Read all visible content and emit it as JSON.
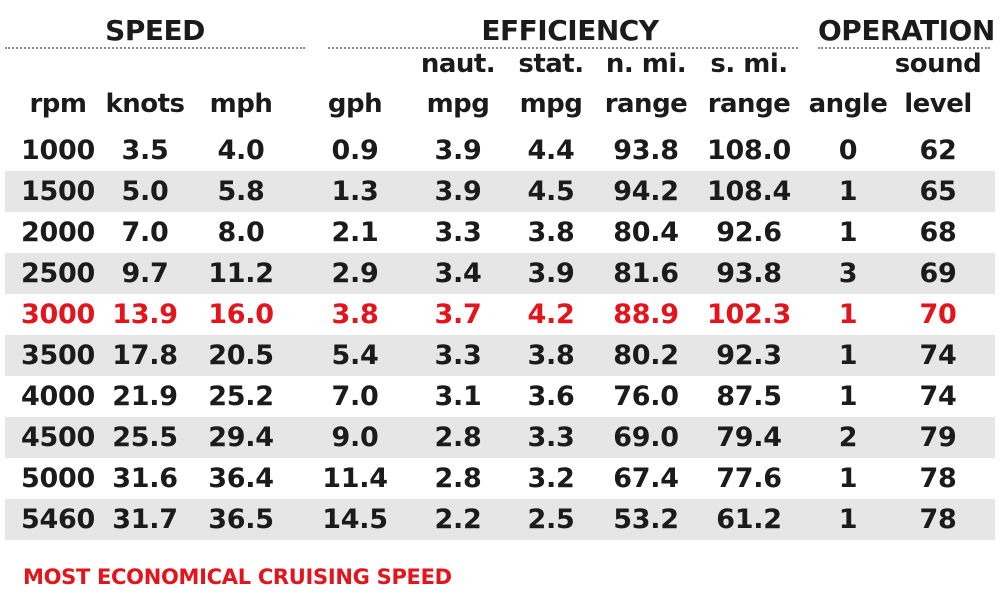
{
  "colors": {
    "highlight": "#e3141b",
    "text": "#1b1b1b",
    "shade": "#e6e6e6"
  },
  "groups": {
    "speed": "SPEED",
    "efficiency": "EFFICIENCY",
    "operation": "OPERATION"
  },
  "columns": [
    {
      "key": "rpm",
      "line1": "",
      "line2": "rpm"
    },
    {
      "key": "knots",
      "line1": "",
      "line2": "knots"
    },
    {
      "key": "mph",
      "line1": "",
      "line2": "mph"
    },
    {
      "key": "gph",
      "line1": "",
      "line2": "gph"
    },
    {
      "key": "naut_mpg",
      "line1": "naut.",
      "line2": "mpg"
    },
    {
      "key": "stat_mpg",
      "line1": "stat.",
      "line2": "mpg"
    },
    {
      "key": "nmi_range",
      "line1": "n. mi.",
      "line2": "range"
    },
    {
      "key": "smi_range",
      "line1": "s. mi.",
      "line2": "range"
    },
    {
      "key": "angle",
      "line1": "",
      "line2": "angle"
    },
    {
      "key": "sound",
      "line1": "sound",
      "line2": "level"
    }
  ],
  "chart_data": {
    "type": "table",
    "highlight_row": 4,
    "rows": [
      [
        "1000",
        "3.5",
        "4.0",
        "0.9",
        "3.9",
        "4.4",
        "93.8",
        "108.0",
        "0",
        "62"
      ],
      [
        "1500",
        "5.0",
        "5.8",
        "1.3",
        "3.9",
        "4.5",
        "94.2",
        "108.4",
        "1",
        "65"
      ],
      [
        "2000",
        "7.0",
        "8.0",
        "2.1",
        "3.3",
        "3.8",
        "80.4",
        "92.6",
        "1",
        "68"
      ],
      [
        "2500",
        "9.7",
        "11.2",
        "2.9",
        "3.4",
        "3.9",
        "81.6",
        "93.8",
        "3",
        "69"
      ],
      [
        "3000",
        "13.9",
        "16.0",
        "3.8",
        "3.7",
        "4.2",
        "88.9",
        "102.3",
        "1",
        "70"
      ],
      [
        "3500",
        "17.8",
        "20.5",
        "5.4",
        "3.3",
        "3.8",
        "80.2",
        "92.3",
        "1",
        "74"
      ],
      [
        "4000",
        "21.9",
        "25.2",
        "7.0",
        "3.1",
        "3.6",
        "76.0",
        "87.5",
        "1",
        "74"
      ],
      [
        "4500",
        "25.5",
        "29.4",
        "9.0",
        "2.8",
        "3.3",
        "69.0",
        "79.4",
        "2",
        "79"
      ],
      [
        "5000",
        "31.6",
        "36.4",
        "11.4",
        "2.8",
        "3.2",
        "67.4",
        "77.6",
        "1",
        "78"
      ],
      [
        "5460",
        "31.7",
        "36.5",
        "14.5",
        "2.2",
        "2.5",
        "53.2",
        "61.2",
        "1",
        "78"
      ]
    ]
  },
  "footnote": "MOST ECONOMICAL CRUISING SPEED"
}
